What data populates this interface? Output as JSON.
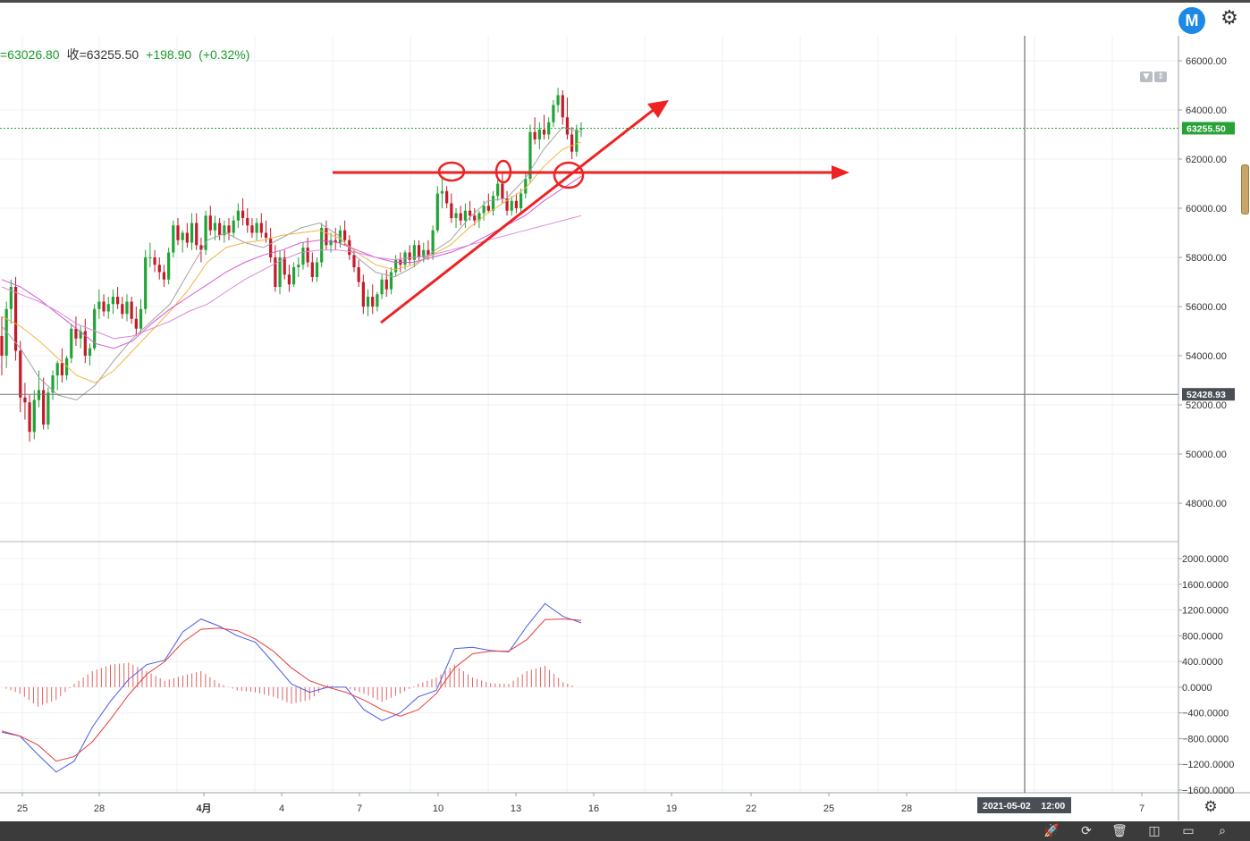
{
  "header": {
    "open_fragment": "=63026.80",
    "close_label": "收=63255.50",
    "change": "+198.90",
    "change_pct": "(+0.32%)"
  },
  "toolbar": {
    "logo_letter": "M",
    "settings_icon": "gear-icon"
  },
  "bottom_toolbar": {
    "icons": [
      "rocket-icon",
      "replay-icon",
      "trash-icon",
      "split-view-icon",
      "window-icon",
      "search-icon"
    ]
  },
  "crosshair": {
    "price_label": "52428.93",
    "time_label": "2021-05-02    12:00"
  },
  "colors": {
    "up": "#21a336",
    "down": "#c41a2a",
    "ma_short": "#a3a3a3",
    "ma_mid": "#f2b446",
    "ma_long": "#d45ad6",
    "ma_longest": "#d98ad8",
    "dif": "#4a5be8",
    "dea": "#e83a3a",
    "hist": "#e06060",
    "annotation": "#ee2222",
    "last_price_bg": "#26a237"
  },
  "chart_data": [
    {
      "type": "candlestick",
      "title": "",
      "x_ticks": [
        "25",
        "28",
        "4月",
        "4",
        "7",
        "10",
        "13",
        "16",
        "19",
        "22",
        "25",
        "28",
        "7"
      ],
      "y_ticks": [
        "66000.00",
        "64000.00",
        "62000.00",
        "60000.00",
        "58000.00",
        "56000.00",
        "54000.00",
        "52000.00",
        "50000.00",
        "48000.00"
      ],
      "ylim": [
        46800,
        66800
      ],
      "last_price": "63255.50",
      "candles_ohlc": [
        [
          54800,
          55600,
          53200,
          54000
        ],
        [
          54000,
          56200,
          53500,
          55900
        ],
        [
          55900,
          57100,
          55300,
          56800
        ],
        [
          56800,
          57200,
          53800,
          54200
        ],
        [
          54200,
          54600,
          51700,
          52300
        ],
        [
          52300,
          52900,
          51400,
          52100
        ],
        [
          52100,
          52400,
          50500,
          50900
        ],
        [
          50900,
          52600,
          50600,
          52200
        ],
        [
          52200,
          53400,
          51900,
          52600
        ],
        [
          52600,
          53100,
          51000,
          51200
        ],
        [
          51200,
          52700,
          51000,
          52500
        ],
        [
          52500,
          53400,
          52200,
          53200
        ],
        [
          53200,
          53800,
          52600,
          53700
        ],
        [
          53700,
          54300,
          52900,
          53200
        ],
        [
          53200,
          54000,
          53000,
          53900
        ],
        [
          53900,
          55300,
          53700,
          55100
        ],
        [
          55100,
          55600,
          54400,
          54700
        ],
        [
          54700,
          55200,
          54300,
          55000
        ],
        [
          55000,
          55500,
          53700,
          54000
        ],
        [
          54000,
          54500,
          53600,
          54300
        ],
        [
          54300,
          56100,
          54200,
          55900
        ],
        [
          55900,
          56700,
          55500,
          56200
        ],
        [
          56200,
          56500,
          55600,
          55800
        ],
        [
          55800,
          56400,
          55500,
          56100
        ],
        [
          56100,
          56700,
          55700,
          56400
        ],
        [
          56400,
          56800,
          55900,
          56100
        ],
        [
          56100,
          56400,
          55500,
          55700
        ],
        [
          55700,
          56500,
          55400,
          56200
        ],
        [
          56200,
          56400,
          55300,
          55500
        ],
        [
          55500,
          56000,
          54800,
          55100
        ],
        [
          55100,
          56300,
          54900,
          55900
        ],
        [
          55900,
          58300,
          55700,
          58000
        ],
        [
          58000,
          58600,
          57600,
          58000
        ],
        [
          58000,
          58300,
          57400,
          57700
        ],
        [
          57700,
          58000,
          57100,
          57400
        ],
        [
          57400,
          57700,
          56800,
          57100
        ],
        [
          57100,
          58400,
          56900,
          58200
        ],
        [
          58200,
          59500,
          58000,
          59300
        ],
        [
          59300,
          59600,
          58500,
          58700
        ],
        [
          58700,
          59100,
          58200,
          59000
        ],
        [
          59000,
          59400,
          58400,
          58600
        ],
        [
          58600,
          59800,
          58300,
          59400
        ],
        [
          59400,
          59800,
          58300,
          58500
        ],
        [
          58500,
          58800,
          57800,
          58300
        ],
        [
          58300,
          59900,
          58100,
          59700
        ],
        [
          59700,
          60100,
          58900,
          59100
        ],
        [
          59100,
          59700,
          58700,
          59400
        ],
        [
          59400,
          59600,
          58700,
          58900
        ],
        [
          58900,
          59500,
          58600,
          59300
        ],
        [
          59300,
          59600,
          58700,
          59000
        ],
        [
          59000,
          59700,
          58800,
          59500
        ],
        [
          59500,
          60200,
          59200,
          59900
        ],
        [
          59900,
          60400,
          59300,
          59600
        ],
        [
          59600,
          60000,
          59000,
          59300
        ],
        [
          59300,
          59600,
          58800,
          59000
        ],
        [
          59000,
          59600,
          58700,
          59400
        ],
        [
          59400,
          59800,
          58800,
          59000
        ],
        [
          59000,
          59500,
          58600,
          58800
        ],
        [
          58800,
          59200,
          57800,
          58000
        ],
        [
          58000,
          58500,
          56600,
          56800
        ],
        [
          56800,
          58300,
          56500,
          58000
        ],
        [
          58000,
          58300,
          57100,
          57300
        ],
        [
          57300,
          57700,
          56600,
          56900
        ],
        [
          56900,
          57800,
          56800,
          57600
        ],
        [
          57600,
          58000,
          57200,
          57700
        ],
        [
          57700,
          58600,
          57500,
          58400
        ],
        [
          58400,
          58800,
          57600,
          57800
        ],
        [
          57800,
          58200,
          57000,
          57200
        ],
        [
          57200,
          58000,
          57000,
          57800
        ],
        [
          57800,
          59400,
          57600,
          59200
        ],
        [
          59200,
          59500,
          58300,
          58500
        ],
        [
          58500,
          59000,
          58200,
          58700
        ],
        [
          58700,
          59200,
          58300,
          58600
        ],
        [
          58600,
          59300,
          58400,
          59100
        ],
        [
          59100,
          59500,
          58500,
          58700
        ],
        [
          58700,
          58900,
          57900,
          58100
        ],
        [
          58100,
          58300,
          57400,
          57600
        ],
        [
          57600,
          57900,
          56800,
          57000
        ],
        [
          57000,
          57300,
          55700,
          56000
        ],
        [
          56000,
          56700,
          55600,
          56400
        ],
        [
          56400,
          56900,
          55700,
          56000
        ],
        [
          56000,
          56600,
          55800,
          56500
        ],
        [
          56500,
          57300,
          56300,
          57100
        ],
        [
          57100,
          57500,
          56400,
          56700
        ],
        [
          56700,
          57600,
          56500,
          57400
        ],
        [
          57400,
          58100,
          57200,
          57900
        ],
        [
          57900,
          58200,
          57400,
          57700
        ],
        [
          57700,
          58300,
          57500,
          58200
        ],
        [
          58200,
          58500,
          57700,
          57900
        ],
        [
          57900,
          58700,
          57600,
          58500
        ],
        [
          58500,
          58700,
          57900,
          58000
        ],
        [
          58000,
          58600,
          57800,
          58300
        ],
        [
          58300,
          58700,
          57900,
          58100
        ],
        [
          58100,
          59300,
          57900,
          59100
        ],
        [
          59100,
          60900,
          59000,
          60600
        ],
        [
          60600,
          61200,
          60000,
          60700
        ],
        [
          60700,
          60900,
          60000,
          60200
        ],
        [
          60200,
          60600,
          59400,
          59600
        ],
        [
          59600,
          60000,
          59200,
          59800
        ],
        [
          59800,
          60100,
          59300,
          59500
        ],
        [
          59500,
          60200,
          59200,
          59900
        ],
        [
          59900,
          60300,
          59500,
          59700
        ],
        [
          59700,
          60000,
          59300,
          59500
        ],
        [
          59500,
          59900,
          59200,
          59800
        ],
        [
          59800,
          60300,
          59500,
          60100
        ],
        [
          60100,
          60600,
          59800,
          59900
        ],
        [
          59900,
          60700,
          59700,
          60500
        ],
        [
          60500,
          61200,
          60300,
          61000
        ],
        [
          61000,
          61400,
          60200,
          60400
        ],
        [
          60400,
          60700,
          59700,
          59900
        ],
        [
          59900,
          60500,
          59700,
          60300
        ],
        [
          60300,
          60600,
          59800,
          60000
        ],
        [
          60000,
          60800,
          59800,
          60600
        ],
        [
          60600,
          61400,
          60400,
          61200
        ],
        [
          61200,
          63400,
          61000,
          63100
        ],
        [
          63100,
          63700,
          62600,
          62800
        ],
        [
          62800,
          63500,
          62400,
          63200
        ],
        [
          63200,
          63800,
          62800,
          63000
        ],
        [
          63000,
          63700,
          62800,
          63500
        ],
        [
          63500,
          64400,
          63300,
          64200
        ],
        [
          64200,
          64900,
          63900,
          64600
        ],
        [
          64600,
          64800,
          63400,
          63700
        ],
        [
          63700,
          64500,
          62800,
          63000
        ],
        [
          63000,
          63300,
          62000,
          62300
        ],
        [
          62300,
          63400,
          62100,
          63200
        ],
        [
          63200,
          63500,
          62900,
          63255.5
        ]
      ],
      "moving_averages": [
        {
          "values_sampled": [
            55200,
            54300,
            53100,
            52400,
            52200,
            52800,
            53800,
            54700,
            55400,
            56100,
            57400,
            58700,
            59000,
            58600,
            58400,
            58800,
            59200,
            59400,
            58900,
            58000,
            57400,
            57200,
            57600,
            58200,
            58700,
            59600,
            60300,
            60400,
            61200,
            62400,
            63300,
            63100
          ]
        },
        {
          "values_sampled": [
            55600,
            55200,
            54600,
            53900,
            53200,
            52900,
            53400,
            54200,
            55000,
            55800,
            56700,
            57800,
            58400,
            58600,
            58700,
            58900,
            59000,
            59100,
            58800,
            58200,
            57700,
            57500,
            57700,
            58100,
            58500,
            59200,
            59800,
            60300,
            60800,
            61700,
            62400,
            62700
          ]
        },
        {
          "values_sampled": [
            57100,
            56800,
            56300,
            55700,
            55100,
            54500,
            54300,
            54600,
            55300,
            55900,
            56400,
            56900,
            57400,
            57800,
            58100,
            58300,
            58600,
            58700,
            58600,
            58300,
            58000,
            57800,
            57800,
            58000,
            58200,
            58500,
            58900,
            59300,
            59700,
            60300,
            60800,
            61300
          ]
        },
        {
          "values_sampled": [
            56800,
            56500,
            56200,
            55800,
            55300,
            55000,
            54700,
            54800,
            55100,
            55400,
            55800,
            56100,
            56600,
            57100,
            57500,
            57900,
            58200,
            58300,
            58300,
            58200,
            58000,
            57900,
            58000,
            58100,
            58300,
            58500,
            58700,
            58900,
            59100,
            59300,
            59500,
            59700
          ]
        }
      ]
    },
    {
      "type": "macd",
      "title": "",
      "y_ticks": [
        "2000.0000",
        "1600.0000",
        "1200.0000",
        "800.0000",
        "400.0000",
        "0.0000",
        "−400.0000",
        "−800.0000",
        "−1200.0000",
        "−1600.0000"
      ],
      "ylim": [
        -1650,
        2050
      ],
      "dif_sampled": [
        -700,
        -760,
        -1050,
        -1320,
        -1150,
        -620,
        -220,
        120,
        350,
        420,
        860,
        1060,
        950,
        800,
        700,
        380,
        50,
        -80,
        0,
        0,
        -350,
        -520,
        -400,
        -150,
        -50,
        600,
        620,
        570,
        550,
        950,
        1300,
        1100,
        1000
      ],
      "dea_sampled": [
        -680,
        -760,
        -900,
        -1150,
        -1080,
        -850,
        -500,
        -120,
        200,
        400,
        700,
        900,
        920,
        880,
        750,
        560,
        300,
        100,
        0,
        -80,
        -200,
        -350,
        -450,
        -350,
        -100,
        300,
        520,
        560,
        560,
        740,
        1050,
        1060,
        1040
      ],
      "histogram_sampled": [
        0,
        -100,
        -300,
        -200,
        50,
        250,
        350,
        380,
        250,
        100,
        180,
        250,
        60,
        -50,
        -80,
        -150,
        -260,
        -200,
        30,
        -10,
        -100,
        -230,
        -100,
        50,
        150,
        350,
        150,
        60,
        50,
        250,
        330,
        80,
        -30
      ]
    }
  ]
}
